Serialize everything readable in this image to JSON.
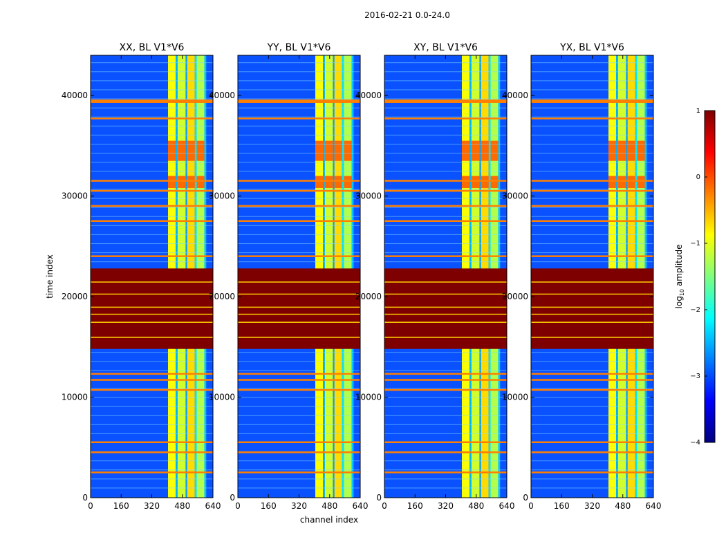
{
  "figure": {
    "suptitle": "2016-02-21 0.0-24.0",
    "xlabel": "channel index",
    "ylabel": "time index"
  },
  "colorbar": {
    "label": "log10 amplitude",
    "label_base": "log",
    "label_sub": "10",
    "label_rest": " amplitude",
    "range": [
      -4,
      1
    ],
    "ticks": [
      1,
      0,
      -1,
      -2,
      -3,
      -4
    ],
    "tick_labels": [
      "1",
      "0",
      "−1",
      "−2",
      "−3",
      "−4"
    ],
    "stops": [
      "#00007f",
      "#0000ff",
      "#007fff",
      "#00ffff",
      "#7fff7f",
      "#ffff00",
      "#ff7f00",
      "#ff0000",
      "#7f0000"
    ]
  },
  "chart_data": [
    {
      "type": "heatmap",
      "title": "XX, BL V1*V6",
      "xlim": [
        0,
        640
      ],
      "ylim": [
        0,
        44000
      ],
      "xticks": [
        0,
        160,
        320,
        480,
        640
      ],
      "yticks": [
        0,
        10000,
        20000,
        30000,
        40000
      ],
      "value_label": "log10 amplitude",
      "bright_channel_range": [
        405,
        605
      ],
      "saturated_time_range": [
        14800,
        22800
      ],
      "flag_rows": [
        39500,
        37700,
        31500,
        30500,
        29000,
        27500,
        24000,
        12300,
        11700,
        10700,
        5500,
        4500,
        2500
      ]
    },
    {
      "type": "heatmap",
      "title": "YY, BL V1*V6",
      "xlim": [
        0,
        640
      ],
      "ylim": [
        0,
        44000
      ],
      "xticks": [
        0,
        160,
        320,
        480,
        640
      ],
      "yticks": [
        0,
        10000,
        20000,
        30000,
        40000
      ],
      "value_label": "log10 amplitude",
      "bright_channel_range": [
        405,
        605
      ],
      "saturated_time_range": [
        14800,
        22800
      ],
      "flag_rows": [
        39500,
        37700,
        31500,
        30500,
        29000,
        27500,
        24000,
        12300,
        11700,
        10700,
        5500,
        4500,
        2500
      ]
    },
    {
      "type": "heatmap",
      "title": "XY, BL V1*V6",
      "xlim": [
        0,
        640
      ],
      "ylim": [
        0,
        44000
      ],
      "xticks": [
        0,
        160,
        320,
        480,
        640
      ],
      "yticks": [
        0,
        10000,
        20000,
        30000,
        40000
      ],
      "value_label": "log10 amplitude",
      "bright_channel_range": [
        405,
        605
      ],
      "saturated_time_range": [
        14800,
        22800
      ],
      "flag_rows": [
        39500,
        37700,
        31500,
        30500,
        29000,
        27500,
        24000,
        12300,
        11700,
        10700,
        5500,
        4500,
        2500
      ]
    },
    {
      "type": "heatmap",
      "title": "YX, BL V1*V6",
      "xlim": [
        0,
        640
      ],
      "ylim": [
        0,
        44000
      ],
      "xticks": [
        0,
        160,
        320,
        480,
        640
      ],
      "yticks": [
        0,
        10000,
        20000,
        30000,
        40000
      ],
      "value_label": "log10 amplitude",
      "bright_channel_range": [
        405,
        605
      ],
      "saturated_time_range": [
        14800,
        22800
      ],
      "flag_rows": [
        39500,
        37700,
        31500,
        30500,
        29000,
        27500,
        24000,
        12300,
        11700,
        10700,
        5500,
        4500,
        2500
      ]
    }
  ]
}
